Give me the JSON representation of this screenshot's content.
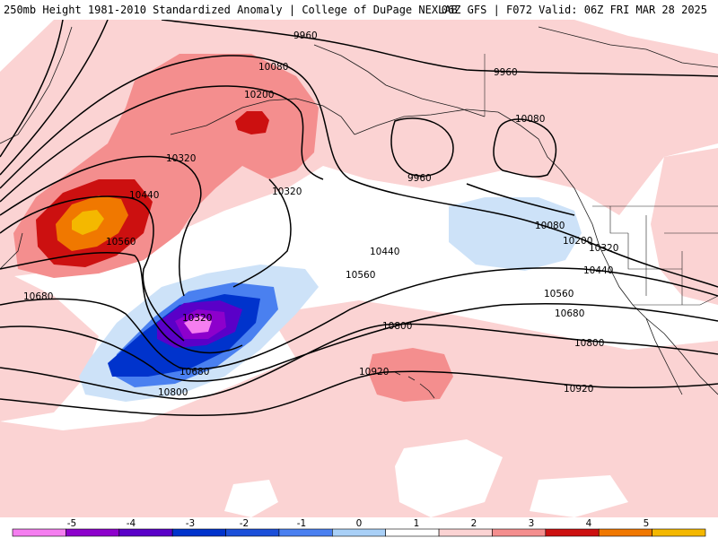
{
  "header": {
    "title_left": "250mb Height 1981-2010 Standardized Anomaly | College of DuPage NEXLAB",
    "title_right": "06Z GFS | F072 Valid: 06Z FRI MAR 28 2025"
  },
  "legend": {
    "ticks": [
      "-5",
      "-4",
      "-3",
      "-2",
      "-1",
      "0",
      "1",
      "2",
      "3",
      "4",
      "5"
    ],
    "colors": [
      "#f57ef0",
      "#8d00cc",
      "#5a00c8",
      "#0033cc",
      "#1b4fd9",
      "#4a80f0",
      "#a9d0f7",
      "#ffffff",
      "#fbd3d3",
      "#f48e8e",
      "#cc1010",
      "#f07800",
      "#f4b800"
    ]
  },
  "contours": {
    "labels": [
      "9960",
      "9960",
      "9960",
      "10080",
      "10080",
      "10080",
      "10200",
      "10200",
      "10320",
      "10320",
      "10320",
      "10320",
      "10440",
      "10440",
      "10440",
      "10560",
      "10560",
      "10560",
      "10680",
      "10680",
      "10680",
      "10800",
      "10800",
      "10800",
      "10920",
      "10920"
    ]
  }
}
